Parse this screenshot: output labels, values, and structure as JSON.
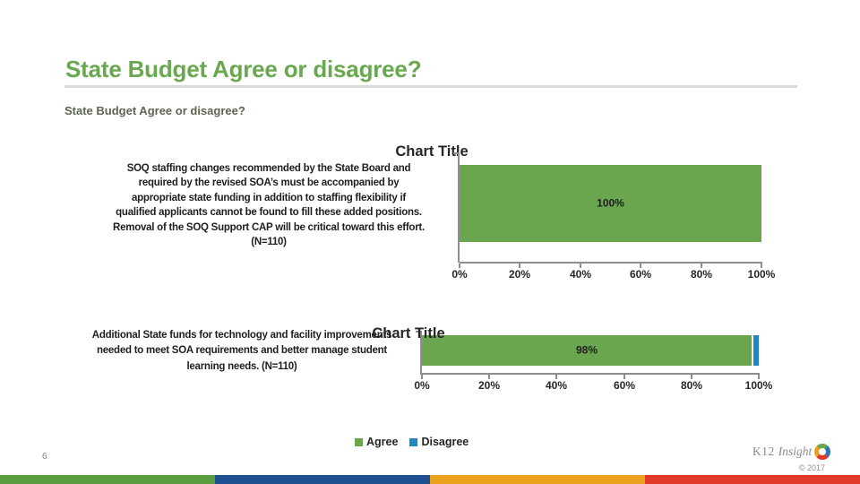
{
  "slide": {
    "title": "State Budget Agree or disagree?",
    "subtitle": "State Budget Agree or disagree?",
    "page_number": "6"
  },
  "footer": {
    "logo_k12": "K12",
    "logo_insight": "Insight",
    "copyright": "© 2017"
  },
  "legend": {
    "items": [
      {
        "label": "Agree",
        "color": "#6aa550"
      },
      {
        "label": "Disagree",
        "color": "#1f87c5"
      }
    ],
    "position": "bottom-center"
  },
  "colors": {
    "title_green": "#6aa84f",
    "agree_green": "#6aa550",
    "disagree_blue": "#1f87c5",
    "axis_gray": "#8f8f8f",
    "heading_rule_gray": "#d9d9d9",
    "footer_stripe": [
      "#5a9e41",
      "#1d4f91",
      "#eaa21e",
      "#e23a28"
    ]
  },
  "chart_data": [
    {
      "type": "bar",
      "orientation": "horizontal-100pct-stacked",
      "title": "Chart Title",
      "categories": [
        "SOQ staffing changes recommended by the State Board and required by the revised SOA’s must be accompanied by appropriate state funding in addition to staffing flexibility if qualified applicants cannot be found to fill these added positions. Removal of the SOQ Support CAP will be critical toward this effort. (N=110)"
      ],
      "label_display": "SOQ staffing changes recommended by the State Board and\nrequired by the revised SOA’s must be accompanied by\nappropriate state funding in addition to staffing flexibility if\nqualified applicants cannot be found to fill these added positions.\nRemoval of the SOQ Support CAP will be critical toward this effort.\n(N=110)",
      "series": [
        {
          "name": "Agree",
          "values": [
            100
          ]
        },
        {
          "name": "Disagree",
          "values": [
            0
          ]
        }
      ],
      "data_labels": [
        "100%"
      ],
      "x_ticks": [
        "0%",
        "20%",
        "40%",
        "60%",
        "80%",
        "100%"
      ],
      "xlim": [
        0,
        100
      ],
      "grid": false
    },
    {
      "type": "bar",
      "orientation": "horizontal-100pct-stacked",
      "title": "Chart Title",
      "categories": [
        "Additional State funds for technology and facility improvements needed to meet SOA requirements and better manage student learning needs. (N=110)"
      ],
      "label_display": "Additional State funds for technology and facility improvements\nneeded to meet SOA requirements and better manage student\nlearning needs. (N=110)",
      "series": [
        {
          "name": "Agree",
          "values": [
            98
          ]
        },
        {
          "name": "Disagree",
          "values": [
            2
          ]
        }
      ],
      "data_labels": [
        "98%"
      ],
      "x_ticks": [
        "0%",
        "20%",
        "40%",
        "60%",
        "80%",
        "100%"
      ],
      "xlim": [
        0,
        100
      ],
      "grid": false
    }
  ]
}
